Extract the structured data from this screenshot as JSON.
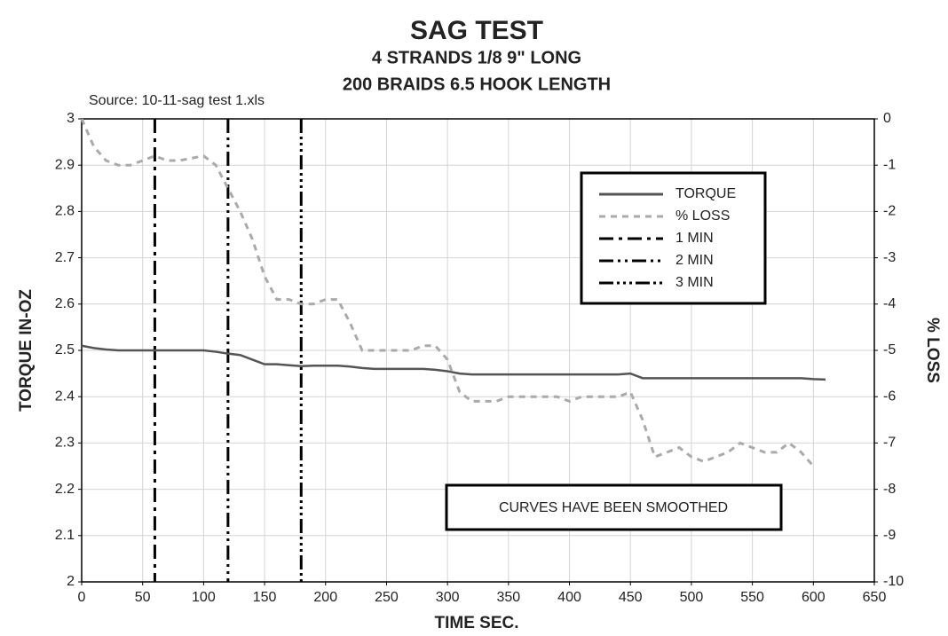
{
  "chart_data": {
    "type": "line",
    "title": "SAG TEST",
    "subtitle": [
      "4 STRANDS 1/8 9\" LONG",
      "200 BRAIDS 6.5 HOOK LENGTH"
    ],
    "source": "Source: 10-11-sag test 1.xls",
    "xlabel": "TIME SEC.",
    "ylabel": "TORQUE IN-OZ",
    "y2label": "% LOSS",
    "annotation": "CURVES HAVE BEEN SMOOTHED",
    "x": [
      0,
      10,
      20,
      30,
      40,
      50,
      60,
      70,
      80,
      90,
      100,
      110,
      120,
      130,
      140,
      150,
      160,
      170,
      180,
      190,
      200,
      210,
      220,
      230,
      240,
      250,
      260,
      270,
      280,
      290,
      300,
      310,
      320,
      330,
      340,
      350,
      360,
      370,
      380,
      390,
      400,
      410,
      420,
      430,
      440,
      450,
      460,
      470,
      480,
      490,
      500,
      510,
      520,
      530,
      540,
      550,
      560,
      570,
      580,
      590,
      600,
      610
    ],
    "series": [
      {
        "name": "TORQUE",
        "color": "#555555",
        "dash": "solid",
        "axis": "y",
        "values": [
          2.51,
          2.505,
          2.502,
          2.5,
          2.5,
          2.5,
          2.5,
          2.5,
          2.5,
          2.5,
          2.5,
          2.497,
          2.493,
          2.49,
          2.48,
          2.47,
          2.47,
          2.468,
          2.466,
          2.467,
          2.467,
          2.467,
          2.465,
          2.462,
          2.46,
          2.46,
          2.46,
          2.46,
          2.46,
          2.458,
          2.455,
          2.45,
          2.448,
          2.448,
          2.448,
          2.448,
          2.448,
          2.448,
          2.448,
          2.448,
          2.448,
          2.448,
          2.448,
          2.448,
          2.448,
          2.45,
          2.44,
          2.44,
          2.44,
          2.44,
          2.44,
          2.44,
          2.44,
          2.44,
          2.44,
          2.44,
          2.44,
          2.44,
          2.44,
          2.44,
          2.438,
          2.437
        ]
      },
      {
        "name": "% LOSS",
        "color": "#aaaaaa",
        "dash": "dashed",
        "axis": "y2",
        "values": [
          0,
          -0.6,
          -0.9,
          -1.0,
          -1.0,
          -0.9,
          -0.8,
          -0.9,
          -0.9,
          -0.85,
          -0.8,
          -1.0,
          -1.5,
          -2.0,
          -2.6,
          -3.4,
          -3.9,
          -3.9,
          -4.0,
          -4.0,
          -3.9,
          -3.9,
          -4.4,
          -5.0,
          -5.0,
          -5.0,
          -5.0,
          -5.0,
          -4.9,
          -4.9,
          -5.2,
          -5.9,
          -6.1,
          -6.1,
          -6.1,
          -6.0,
          -6.0,
          -6.0,
          -6.0,
          -6.0,
          -6.1,
          -6.0,
          -6.0,
          -6.0,
          -6.0,
          -5.9,
          -6.5,
          -7.3,
          -7.2,
          -7.1,
          -7.3,
          -7.4,
          -7.3,
          -7.2,
          -7.0,
          -7.1,
          -7.2,
          -7.2,
          -7.0,
          -7.2,
          -7.5,
          null
        ]
      }
    ],
    "vlines": [
      {
        "name": "1 MIN",
        "x": 60,
        "color": "#000000",
        "dash": "dashdot"
      },
      {
        "name": "2 MIN",
        "x": 120,
        "color": "#000000",
        "dash": "dashdotdot"
      },
      {
        "name": "3 MIN",
        "x": 180,
        "color": "#000000",
        "dash": "dashdotdotdot"
      }
    ],
    "xlim": [
      0,
      650
    ],
    "xticks": [
      0,
      50,
      100,
      150,
      200,
      250,
      300,
      350,
      400,
      450,
      500,
      550,
      600,
      650
    ],
    "ylim": [
      2,
      3
    ],
    "yticks": [
      2,
      2.1,
      2.2,
      2.3,
      2.4,
      2.5,
      2.6,
      2.7,
      2.8,
      2.9,
      3
    ],
    "y2lim": [
      -10,
      0
    ],
    "y2ticks": [
      -10,
      -9,
      -8,
      -7,
      -6,
      -5,
      -4,
      -3,
      -2,
      -1,
      0
    ],
    "grid": true,
    "legend": "upper right"
  }
}
